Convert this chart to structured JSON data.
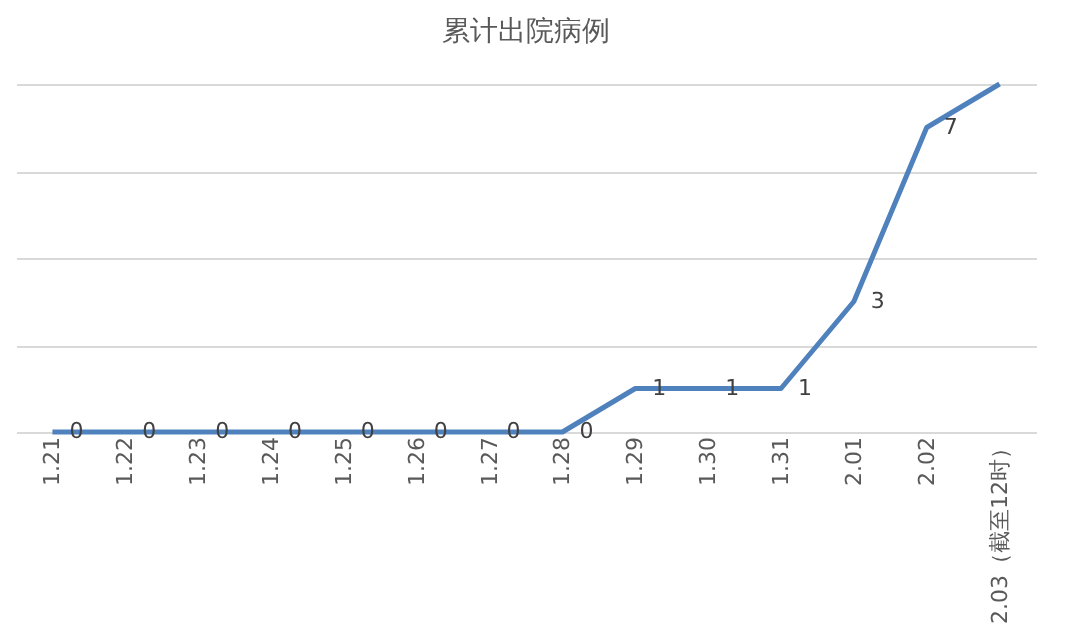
{
  "chart_data": {
    "type": "line",
    "title": "累计出院病例",
    "categories": [
      "1.21",
      "1.22",
      "1.23",
      "1.24",
      "1.25",
      "1.26",
      "1.27",
      "1.28",
      "1.29",
      "1.30",
      "1.31",
      "2.01",
      "2.02",
      "2.03（截至12时）"
    ],
    "series": [
      {
        "color": "#4f81bd",
        "values": [
          0,
          0,
          0,
          0,
          0,
          0,
          0,
          0,
          1,
          1,
          1,
          3,
          7,
          8
        ],
        "value_labels": [
          "0",
          "0",
          "0",
          "0",
          "0",
          "0",
          "0",
          "0",
          "1",
          "1",
          "1",
          "3",
          "7",
          null
        ]
      }
    ],
    "grid": "y",
    "tick_labels": "x",
    "marker": "none",
    "line_style": "solid"
  }
}
